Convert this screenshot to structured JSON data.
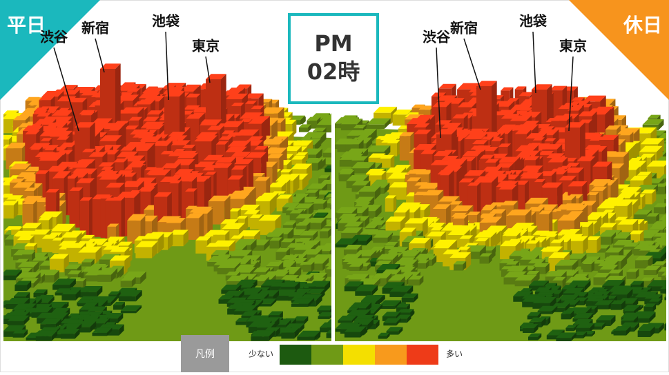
{
  "corner_labels": {
    "weekday": "平日",
    "holiday": "休日"
  },
  "time": {
    "period": "PM",
    "hour": "02時"
  },
  "panels": [
    {
      "landmarks": [
        "渋谷",
        "新宿",
        "池袋",
        "東京"
      ]
    },
    {
      "landmarks": [
        "渋谷",
        "新宿",
        "池袋",
        "東京"
      ]
    }
  ],
  "legend": {
    "title": "凡例",
    "low": "少ない",
    "high": "多い",
    "colors": [
      "#1d5a10",
      "#6f9a16",
      "#f4df00",
      "#f89a1c",
      "#ee3b18"
    ]
  }
}
